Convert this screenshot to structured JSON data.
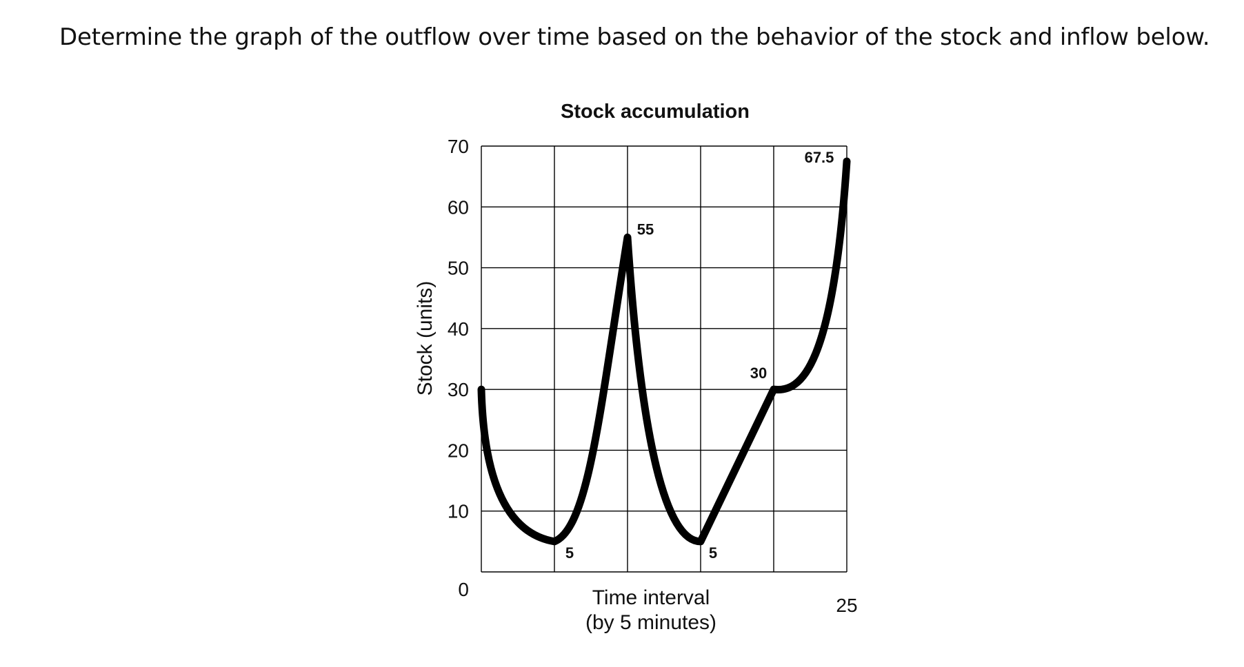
{
  "question": "Determine the graph of the outflow over time based on the behavior of the stock and inflow below.",
  "chart_data": {
    "type": "line",
    "title": "Stock accumulation",
    "ylabel": "Stock (units)",
    "xlabel_lines": [
      "Time interval",
      "(by 5 minutes)"
    ],
    "ylim": [
      0,
      70
    ],
    "xlim": [
      0,
      25
    ],
    "y_ticks": [
      0,
      10,
      20,
      30,
      40,
      50,
      60,
      70
    ],
    "x_tick_labels": [
      {
        "x": 0,
        "label": "0"
      },
      {
        "x": 25,
        "label": "25"
      }
    ],
    "x_grid": [
      0,
      5,
      10,
      15,
      20,
      25
    ],
    "grid": true,
    "series": [
      {
        "points": [
          {
            "x": 0,
            "y": 30
          },
          {
            "x": 5,
            "y": 5
          },
          {
            "x": 10,
            "y": 55
          },
          {
            "x": 15,
            "y": 5
          },
          {
            "x": 20,
            "y": 30
          },
          {
            "x": 25,
            "y": 67.5
          }
        ]
      }
    ],
    "annotations": [
      {
        "x": 5,
        "y": 5,
        "label": "5"
      },
      {
        "x": 10,
        "y": 55,
        "label": "55"
      },
      {
        "x": 15,
        "y": 5,
        "label": "5"
      },
      {
        "x": 20,
        "y": 30,
        "label": "30"
      },
      {
        "x": 25,
        "y": 67.5,
        "label": "67.5"
      }
    ]
  }
}
